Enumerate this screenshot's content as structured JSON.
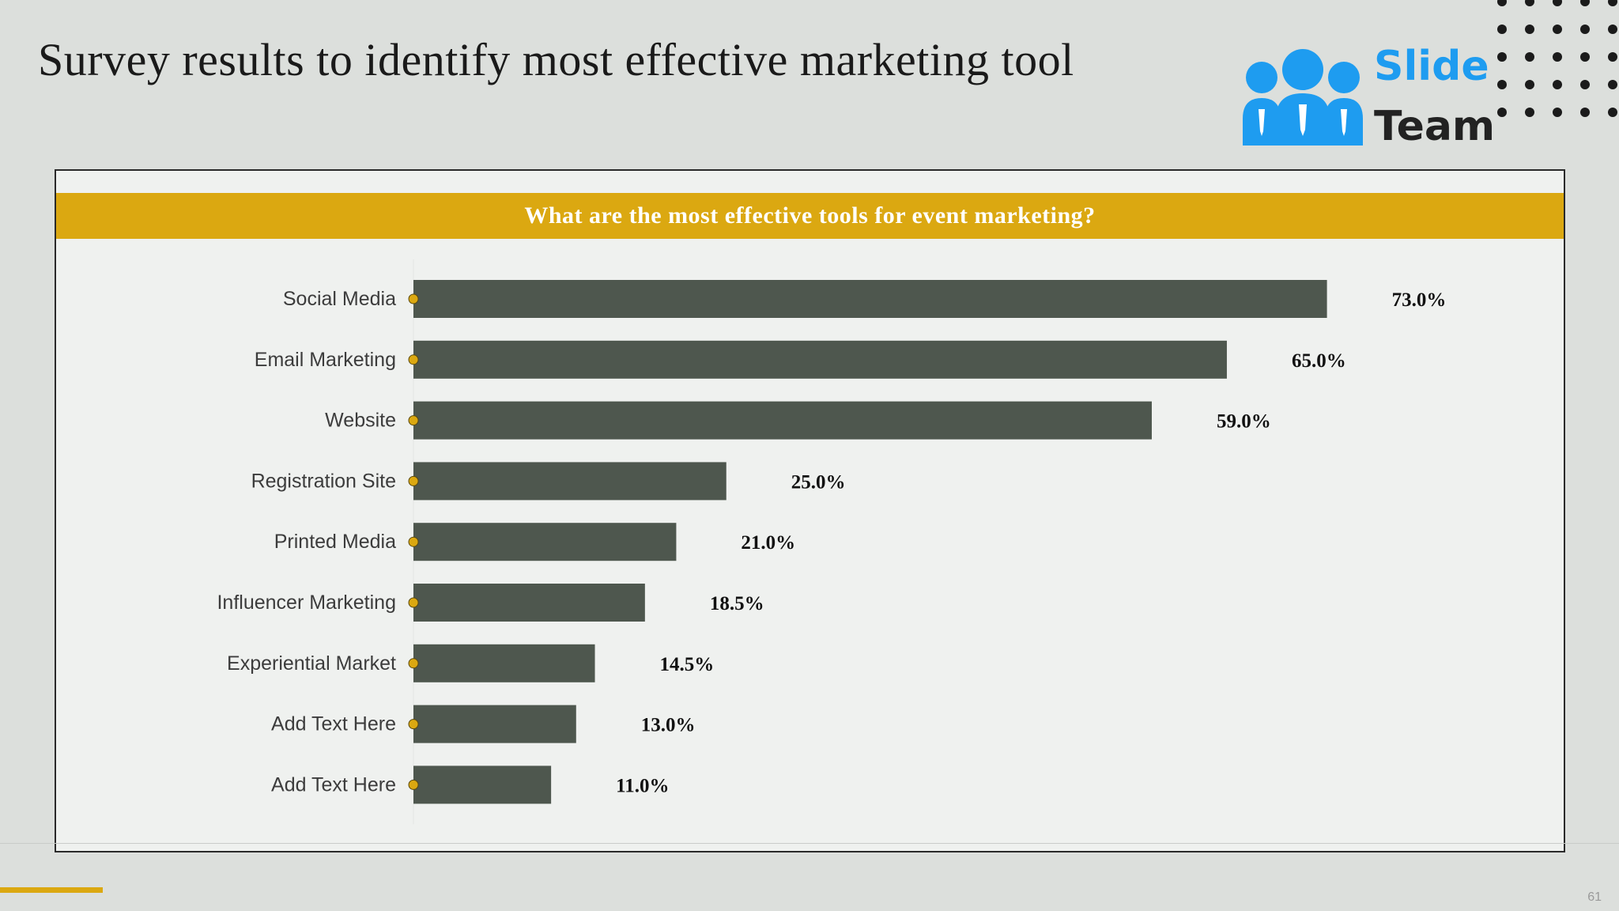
{
  "slide": {
    "title": "Survey results to identify most effective marketing tool",
    "page_number": "61"
  },
  "logo": {
    "line1": "Slide",
    "line2": "Team",
    "color": "#1e9cf0",
    "text_dark": "#222222"
  },
  "colors": {
    "header_bg": "#dba811",
    "bar": "#4e574e",
    "marker": "#dba811",
    "accent": "#dba811",
    "dots": "#1b1b1b"
  },
  "chart_data": {
    "type": "bar",
    "orientation": "horizontal",
    "title": "What are the most effective tools for event marketing?",
    "categories": [
      "Social Media",
      "Email Marketing",
      "Website",
      "Registration Site",
      "Printed Media",
      "Influencer Marketing",
      "Experiential Market",
      "Add Text Here",
      "Add Text Here"
    ],
    "values": [
      73.0,
      65.0,
      59.0,
      25.0,
      21.0,
      18.5,
      14.5,
      13.0,
      11.0
    ],
    "value_labels": [
      "73.0%",
      "65.0%",
      "59.0%",
      "25.0%",
      "21.0%",
      "18.5%",
      "14.5%",
      "13.0%",
      "11.0%"
    ],
    "xlim": [
      0,
      100
    ],
    "unit": "%",
    "grid": false,
    "legend": "none"
  }
}
